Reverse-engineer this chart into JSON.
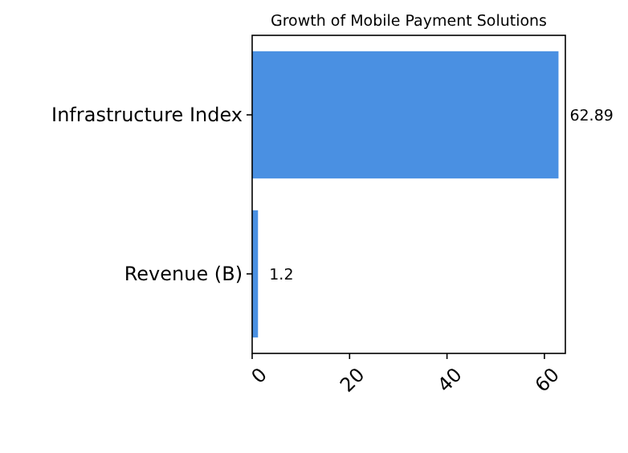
{
  "chart_data": {
    "type": "bar",
    "orientation": "horizontal",
    "title": "Growth of Mobile Payment Solutions",
    "categories": [
      "Infrastructure Index",
      "Revenue (B)"
    ],
    "values": [
      62.89,
      1.2
    ],
    "color": "#4a90e2",
    "xlim": [
      0,
      64.3
    ],
    "xticks": [
      0,
      20,
      40,
      60
    ],
    "data_labels": true
  }
}
